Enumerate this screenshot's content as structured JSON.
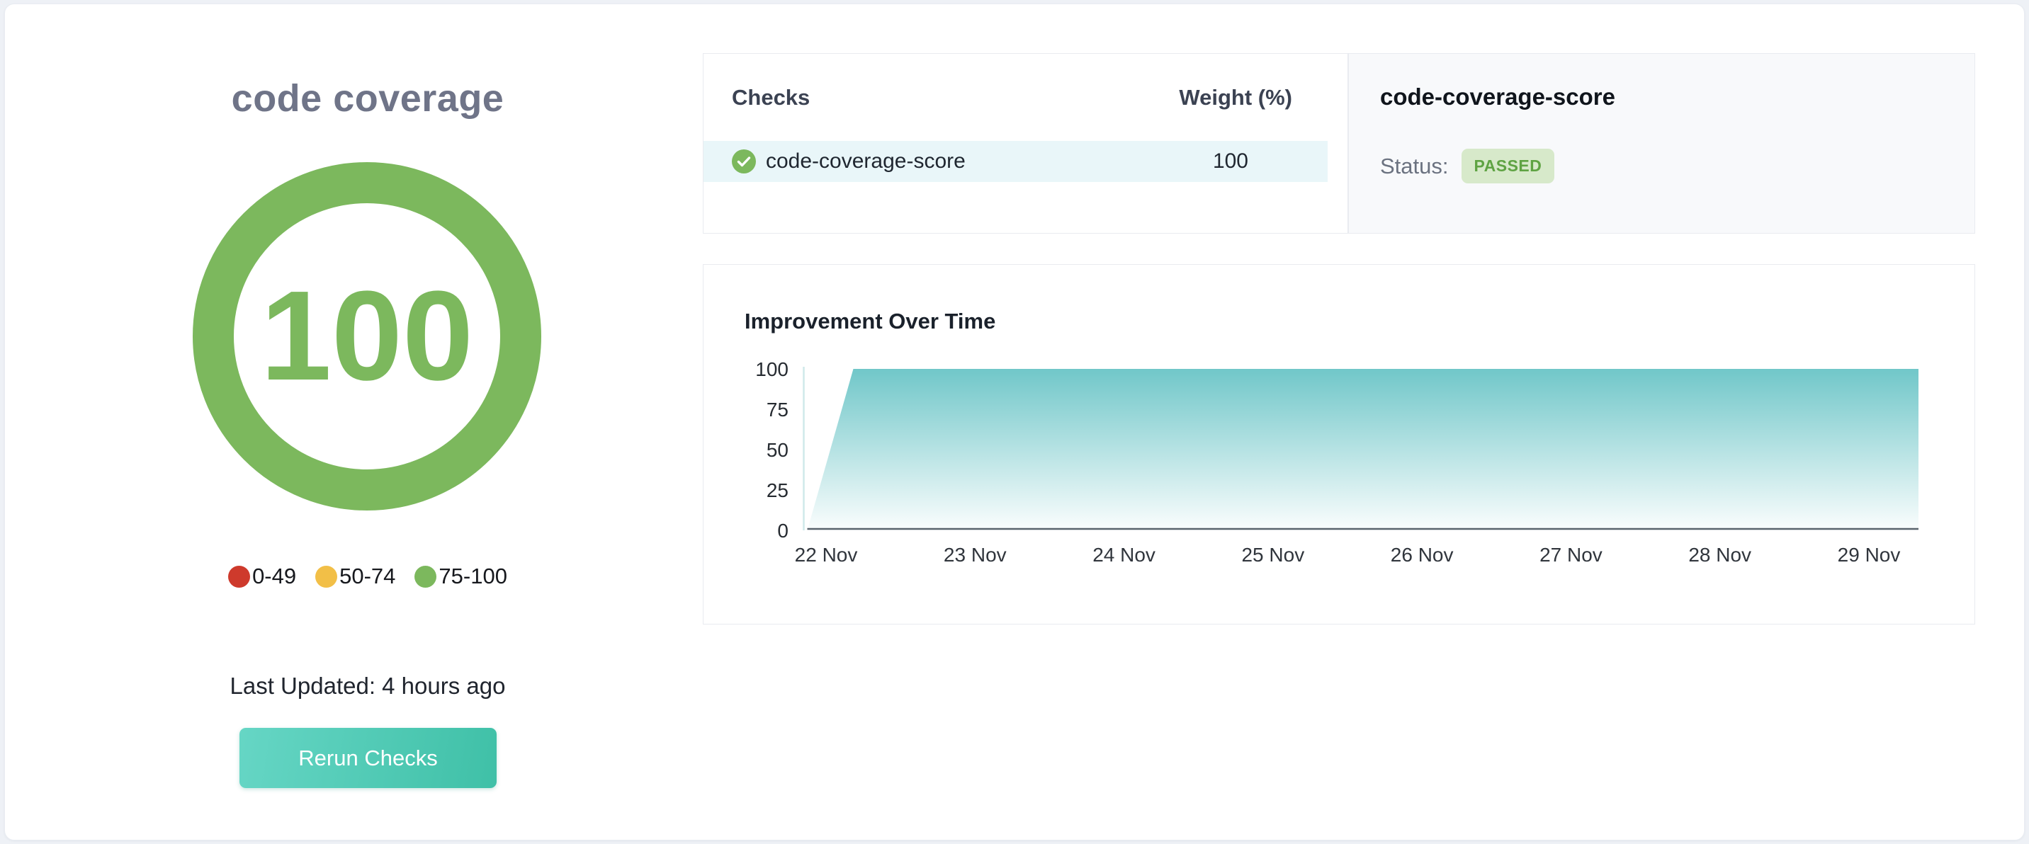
{
  "left_panel": {
    "title": "code coverage",
    "gauge": {
      "value": "100",
      "color": "#7cb85d"
    },
    "legend": [
      {
        "label": "0-49",
        "color": "#ce3a2c"
      },
      {
        "label": "50-74",
        "color": "#f2bf47"
      },
      {
        "label": "75-100",
        "color": "#7cb85d"
      }
    ],
    "last_updated": "Last Updated: 4 hours ago",
    "rerun_button": "Rerun Checks"
  },
  "checks_panel": {
    "headers": {
      "checks": "Checks",
      "weight": "Weight (%)"
    },
    "rows": [
      {
        "icon": "check-circle-icon",
        "name": "code-coverage-score",
        "weight": "100",
        "highlighted": true
      }
    ]
  },
  "status_panel": {
    "title": "code-coverage-score",
    "status_label": "Status:",
    "status_value": "PASSED"
  },
  "chart_panel": {
    "title": "Improvement Over Time"
  },
  "chart_data": {
    "type": "area",
    "title": "Improvement Over Time",
    "x": [
      "22 Nov",
      "23 Nov",
      "24 Nov",
      "25 Nov",
      "26 Nov",
      "27 Nov",
      "28 Nov",
      "29 Nov"
    ],
    "series": [
      {
        "name": "score",
        "values": [
          100,
          100,
          100,
          100,
          100,
          100,
          100,
          100
        ]
      }
    ],
    "leading_ramp": {
      "start_value": 0,
      "end_value": 100,
      "note": "area climbs from 0 to 100 immediately after the y-axis, just before the 22 Nov tick, then stays flat at 100"
    },
    "ylim": [
      0,
      100
    ],
    "yticks": [
      0,
      25,
      50,
      75,
      100
    ],
    "xlabel": "",
    "ylabel": "",
    "grid": false,
    "legend": false,
    "fill": {
      "top": "#69c4c6",
      "bottom": "#ffffff"
    },
    "axis_line_color": "#cfe9ea",
    "baseline_color": "#5a646d"
  },
  "colors": {
    "score_green": "#7cb85d",
    "legend_red": "#ce3a2c",
    "legend_amber": "#f2bf47",
    "legend_green": "#7cb85d",
    "row_highlight": "#e9f6f9",
    "button_gradient_start": "#66d6c5",
    "button_gradient_end": "#3fc0a7",
    "badge_bg": "#d7e9ca",
    "badge_text": "#5fa343",
    "area_teal": "#69c4c6",
    "title_gray": "#6f7488"
  }
}
